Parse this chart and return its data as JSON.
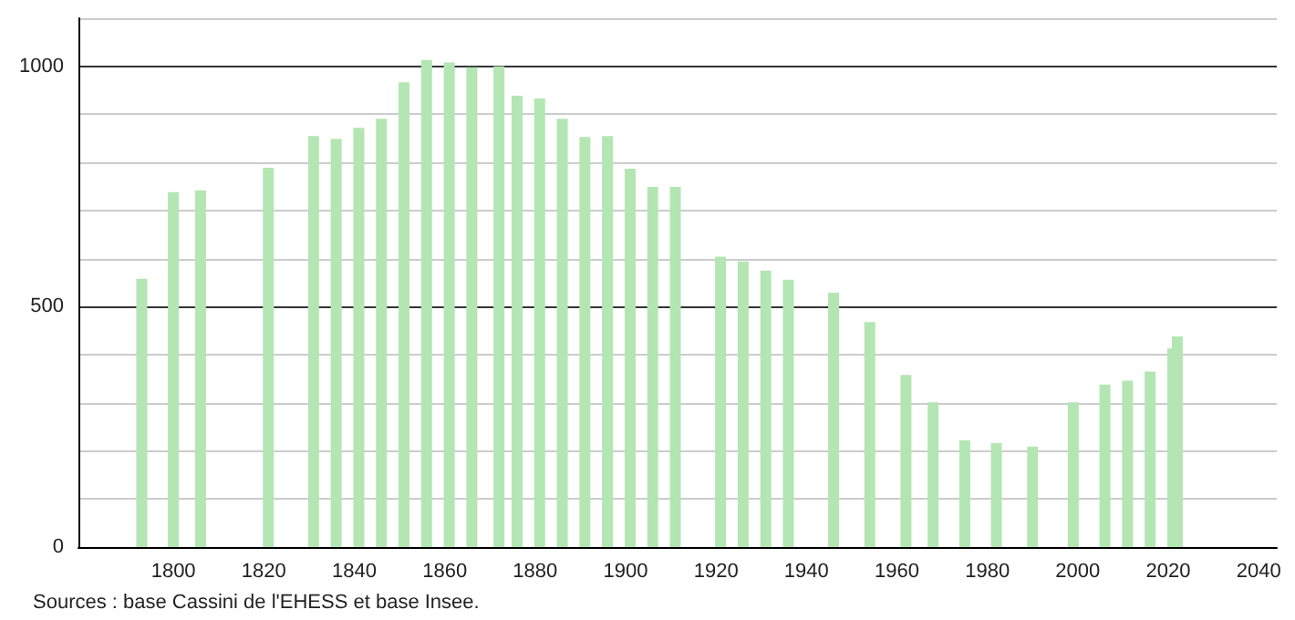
{
  "chart_data": {
    "type": "bar",
    "x": [
      1793,
      1800,
      1806,
      1821,
      1831,
      1836,
      1841,
      1846,
      1851,
      1856,
      1861,
      1866,
      1872,
      1876,
      1881,
      1886,
      1891,
      1896,
      1901,
      1906,
      1911,
      1921,
      1926,
      1931,
      1936,
      1946,
      1954,
      1962,
      1968,
      1975,
      1982,
      1990,
      1999,
      2006,
      2011,
      2016,
      2021,
      2022
    ],
    "values": [
      558,
      738,
      742,
      789,
      855,
      849,
      872,
      891,
      967,
      1013,
      1008,
      998,
      1000,
      939,
      933,
      891,
      853,
      855,
      787,
      749,
      749,
      604,
      594,
      575,
      556,
      529,
      468,
      358,
      301,
      222,
      216,
      209,
      301,
      338,
      346,
      365,
      413,
      438
    ],
    "color": "#b3e6b3",
    "xlim": [
      1779,
      2044
    ],
    "xticks": [
      1800,
      1820,
      1840,
      1860,
      1880,
      1900,
      1920,
      1940,
      1960,
      1980,
      2000,
      2020,
      2040
    ],
    "ylim": [
      0,
      1100
    ],
    "yticks": [
      0,
      {
        "value": 100,
        "label": null
      },
      {
        "value": 200,
        "label": null
      },
      {
        "value": 300,
        "label": null
      },
      {
        "value": 400,
        "label": null
      },
      500,
      {
        "value": 600,
        "label": null
      },
      {
        "value": 700,
        "label": null
      },
      {
        "value": 800,
        "label": null
      },
      {
        "value": 900,
        "label": null
      },
      1000,
      {
        "value": 1100,
        "label": null
      }
    ],
    "grid": "y",
    "annotations": [
      "Sources : base Cassini de l'EHESS et base Insee."
    ]
  }
}
